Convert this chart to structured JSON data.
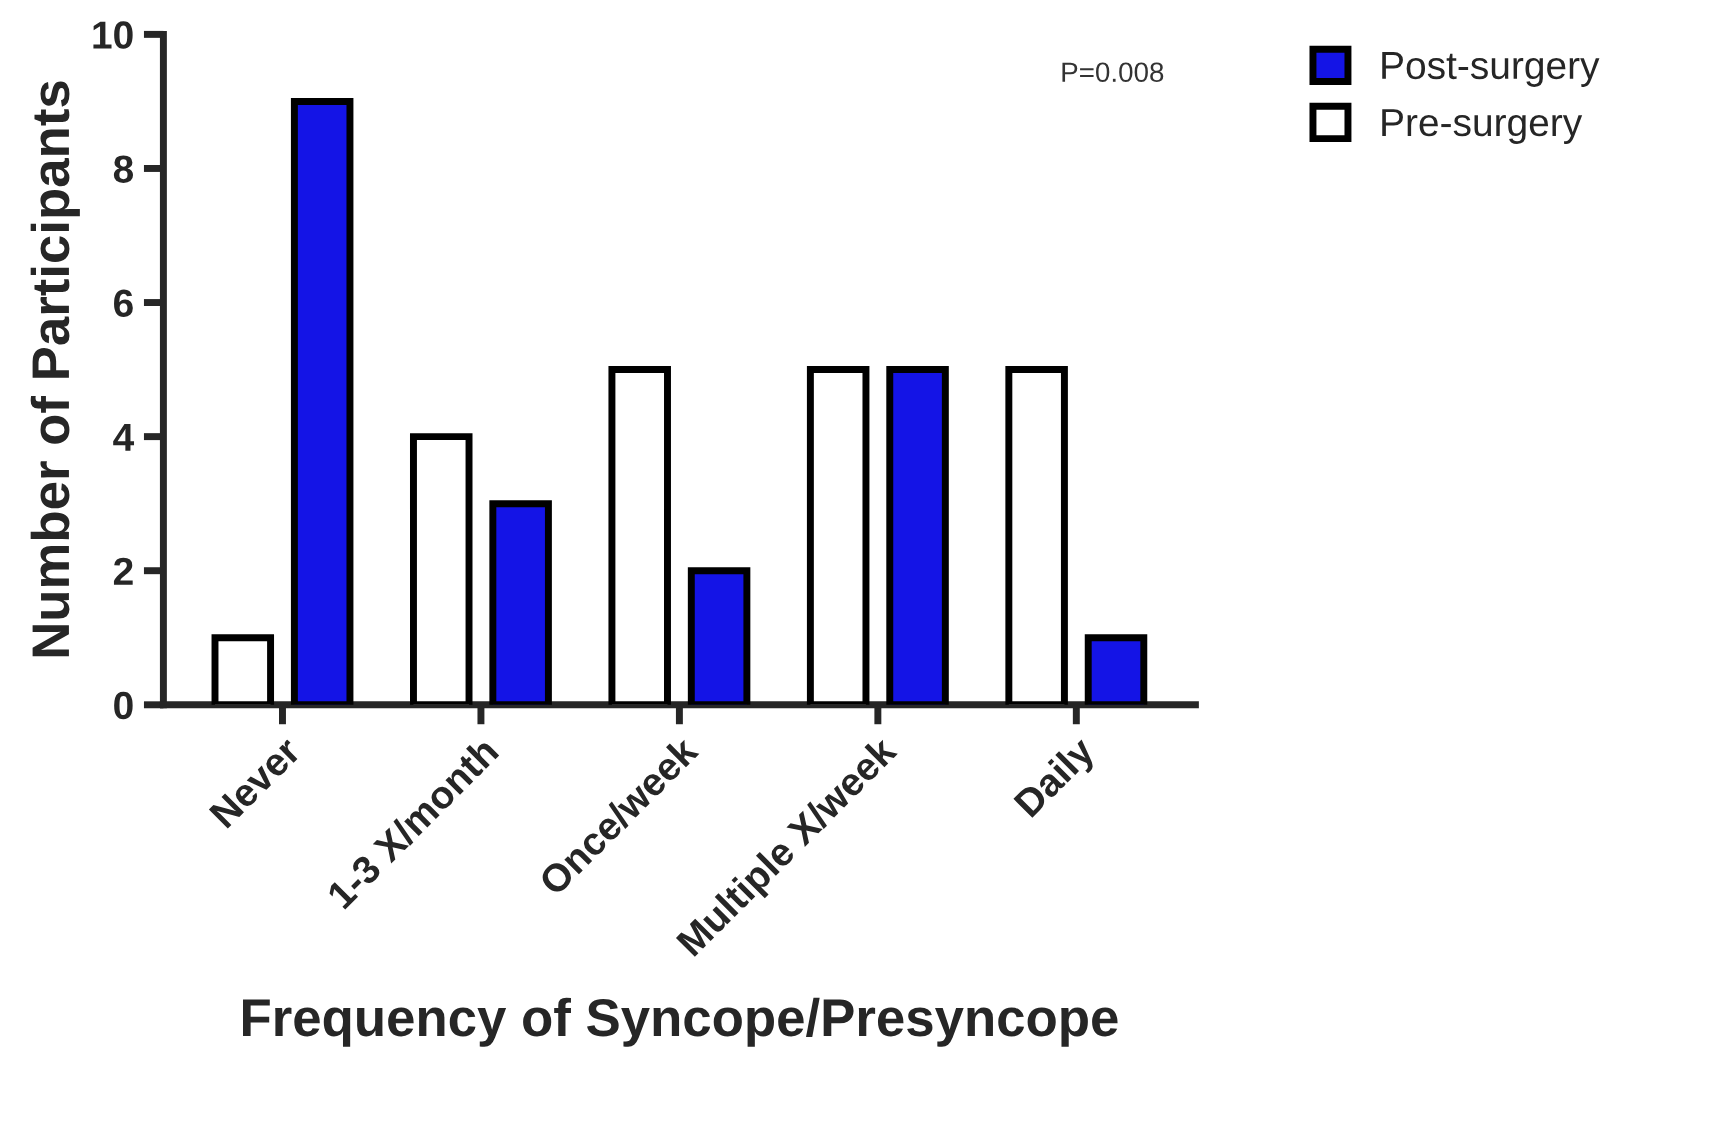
{
  "chart_data": {
    "type": "bar",
    "xlabel": "Frequency of Syncope/Presyncope",
    "ylabel": "Number of Participants",
    "categories": [
      "Never",
      "1-3 X/month",
      "Once/week",
      "Multiple X/week",
      "Daily"
    ],
    "series": [
      {
        "name": "Pre-surgery",
        "color": "#ffffff",
        "values": [
          1,
          4,
          5,
          5,
          5
        ]
      },
      {
        "name": "Post-surgery",
        "color": "#1414e6",
        "values": [
          9,
          3,
          2,
          5,
          1
        ]
      }
    ],
    "ylim": [
      0,
      10
    ],
    "yticks": [
      0,
      2,
      4,
      6,
      8,
      10
    ],
    "grid": false,
    "legend": "top right",
    "annotations": [
      "P=0.008"
    ]
  }
}
